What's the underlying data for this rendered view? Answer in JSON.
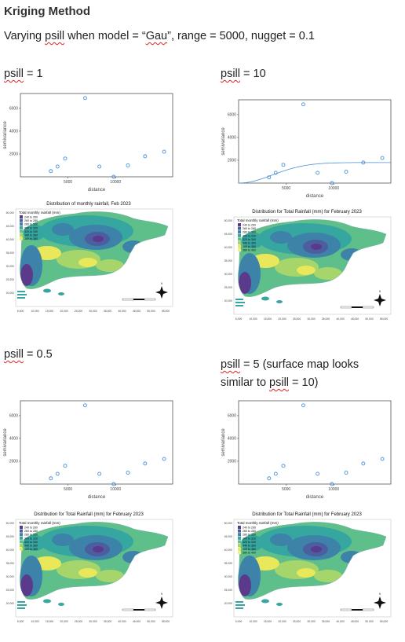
{
  "document": {
    "heading": "Kriging Method",
    "subtitle_prefix": "Varying ",
    "subtitle_psill": "psill",
    "subtitle_mid": " when model = “",
    "subtitle_gau": "Gau",
    "subtitle_suffix": "”, range = 5000, nugget = 0.1"
  },
  "panels": [
    {
      "psill_word": "psill",
      "label_rest": " = 1",
      "map_title": "Distribution of monthly rainfall, Feb 2023"
    },
    {
      "psill_word": "psill",
      "label_rest": " = 10",
      "map_title": "Distribution for Total Rainfall (mm) for February 2023"
    },
    {
      "psill_word": "psill",
      "label_rest": " = 0.5",
      "map_title": "Distribution for Total Rainfall (mm) for February 2023"
    },
    {
      "psill_word": "psill",
      "label_rest": " = 5 (surface map looks",
      "label_line2_prefix": "similar to ",
      "label_line2_psill": "psill",
      "label_line2_suffix": " = 10)",
      "map_title": "Distribution for Total Rainfall (mm) for February 2023"
    }
  ],
  "variogram": {
    "xlabel": "distance",
    "ylabel": "semivariance",
    "x_ticks": [
      5000,
      10000
    ],
    "y_ticks": [
      2000,
      4000,
      6000
    ],
    "points": [
      {
        "x": 3200,
        "y": 500
      },
      {
        "x": 3900,
        "y": 900
      },
      {
        "x": 4700,
        "y": 1600
      },
      {
        "x": 6800,
        "y": 6900
      },
      {
        "x": 8300,
        "y": 900
      },
      {
        "x": 9800,
        "y": 0
      },
      {
        "x": 11300,
        "y": 1000
      },
      {
        "x": 13100,
        "y": 1800
      },
      {
        "x": 15100,
        "y": 2200
      }
    ],
    "xlim": [
      0,
      16000
    ],
    "ylim": [
      0,
      7300
    ]
  },
  "map": {
    "legend_title": "Total monthly rainfall (mm)",
    "legend_items_a": [
      "240 to 260",
      "260 to 280",
      "280 to 300",
      "300 to 320",
      "320 to 340",
      "340 to 360",
      "360 to 380"
    ],
    "legend_items_b": [
      "240 to 260",
      "260 to 280",
      "280 to 300",
      "300 to 320",
      "320 to 340",
      "340 to 360",
      "360 to 380",
      "380 to 400"
    ],
    "colors": [
      "#5b3a8c",
      "#4b5ea0",
      "#3d82a8",
      "#36a6a0",
      "#5fbf8a",
      "#a6d56b",
      "#e8e85a",
      "#f4f07a"
    ],
    "x_ticks": [
      "5,000",
      "10,000",
      "15,000",
      "20,000",
      "25,000",
      "30,000",
      "35,000",
      "40,000",
      "45,000",
      "50,000",
      "55,000"
    ],
    "y_ticks": [
      "50,000",
      "45,000",
      "40,000",
      "35,000",
      "30,000",
      "25,000",
      "20,000"
    ],
    "north": "N"
  }
}
